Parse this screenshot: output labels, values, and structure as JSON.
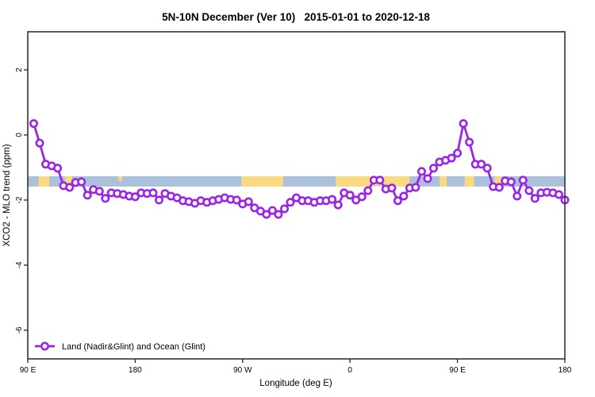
{
  "page": {
    "background": "#ffffff"
  },
  "chart_data": {
    "type": "line",
    "title": "5N-10N December (Ver 10)   2015-01-01 to 2020-12-18",
    "xlabel": "Longitude (deg E)",
    "ylabel": "XCO2 - MLO trend (ppm)",
    "xlim": [
      90,
      540
    ],
    "ylim": [
      -6.88,
      3.17
    ],
    "grid": false,
    "frame_color": "#333333",
    "x_ticks": [
      {
        "value": 90,
        "label": "90 E"
      },
      {
        "value": 180,
        "label": "180"
      },
      {
        "value": 270,
        "label": "90 W"
      },
      {
        "value": 360,
        "label": "0"
      },
      {
        "value": 450,
        "label": "90 E"
      },
      {
        "value": 540,
        "label": "180"
      }
    ],
    "y_ticks": [
      {
        "value": 2,
        "label": "2"
      },
      {
        "value": 0,
        "label": "0"
      },
      {
        "value": -2,
        "label": "-2"
      },
      {
        "value": -4,
        "label": "-4"
      },
      {
        "value": -6,
        "label": "-6"
      }
    ],
    "legend_position": "bottom-left-inside",
    "series": [
      {
        "name": "Land (Nadir&Glint) and Ocean (Glint)",
        "color": "#9a25e6",
        "marker": "open-circle",
        "marker_fill": "#ffffff",
        "x": [
          95,
          100,
          105,
          110,
          115,
          120,
          125,
          130,
          135,
          140,
          145,
          150,
          155,
          160,
          165,
          170,
          175,
          180,
          185,
          190,
          195,
          200,
          205,
          210,
          215,
          220,
          225,
          230,
          235,
          240,
          245,
          250,
          255,
          260,
          265,
          270,
          275,
          280,
          285,
          290,
          295,
          300,
          305,
          310,
          315,
          320,
          325,
          330,
          335,
          340,
          345,
          350,
          355,
          360,
          365,
          370,
          375,
          380,
          385,
          390,
          395,
          400,
          405,
          410,
          415,
          420,
          425,
          430,
          435,
          440,
          445,
          450,
          455,
          460,
          465,
          470,
          475,
          480,
          485,
          490,
          495,
          500,
          505,
          510,
          515,
          520,
          525,
          530,
          535,
          540
        ],
        "y": [
          0.35,
          -0.25,
          -0.9,
          -0.95,
          -1.02,
          -1.56,
          -1.61,
          -1.46,
          -1.44,
          -1.85,
          -1.68,
          -1.73,
          -1.95,
          -1.78,
          -1.8,
          -1.83,
          -1.88,
          -1.9,
          -1.78,
          -1.8,
          -1.78,
          -2.0,
          -1.8,
          -1.88,
          -1.93,
          -2.02,
          -2.05,
          -2.1,
          -2.02,
          -2.07,
          -2.02,
          -1.98,
          -1.93,
          -1.98,
          -2.0,
          -2.12,
          -2.05,
          -2.24,
          -2.34,
          -2.44,
          -2.32,
          -2.44,
          -2.27,
          -2.07,
          -1.93,
          -2.02,
          -2.02,
          -2.07,
          -2.02,
          -2.02,
          -1.98,
          -2.15,
          -1.78,
          -1.85,
          -2.0,
          -1.9,
          -1.71,
          -1.39,
          -1.39,
          -1.66,
          -1.63,
          -2.02,
          -1.88,
          -1.63,
          -1.61,
          -1.12,
          -1.34,
          -1.02,
          -0.83,
          -0.78,
          -0.71,
          -0.56,
          0.35,
          -0.22,
          -0.9,
          -0.9,
          -1.02,
          -1.59,
          -1.61,
          -1.41,
          -1.44,
          -1.88,
          -1.39,
          -1.71,
          -1.95,
          -1.78,
          -1.76,
          -1.78,
          -1.83,
          -2.0
        ]
      }
    ],
    "map_band": {
      "y_range": [
        -1.585,
        -1.268
      ],
      "ocean_color": "#abc0da",
      "land_color": "#fbd981",
      "land_segments": [
        [
          99,
          108
        ],
        [
          121,
          127
        ],
        [
          269,
          304
        ],
        [
          348,
          410
        ],
        [
          435,
          441
        ],
        [
          456,
          464
        ],
        [
          481,
          487
        ]
      ],
      "land_specks": [
        [
          166,
          169
        ]
      ]
    }
  }
}
